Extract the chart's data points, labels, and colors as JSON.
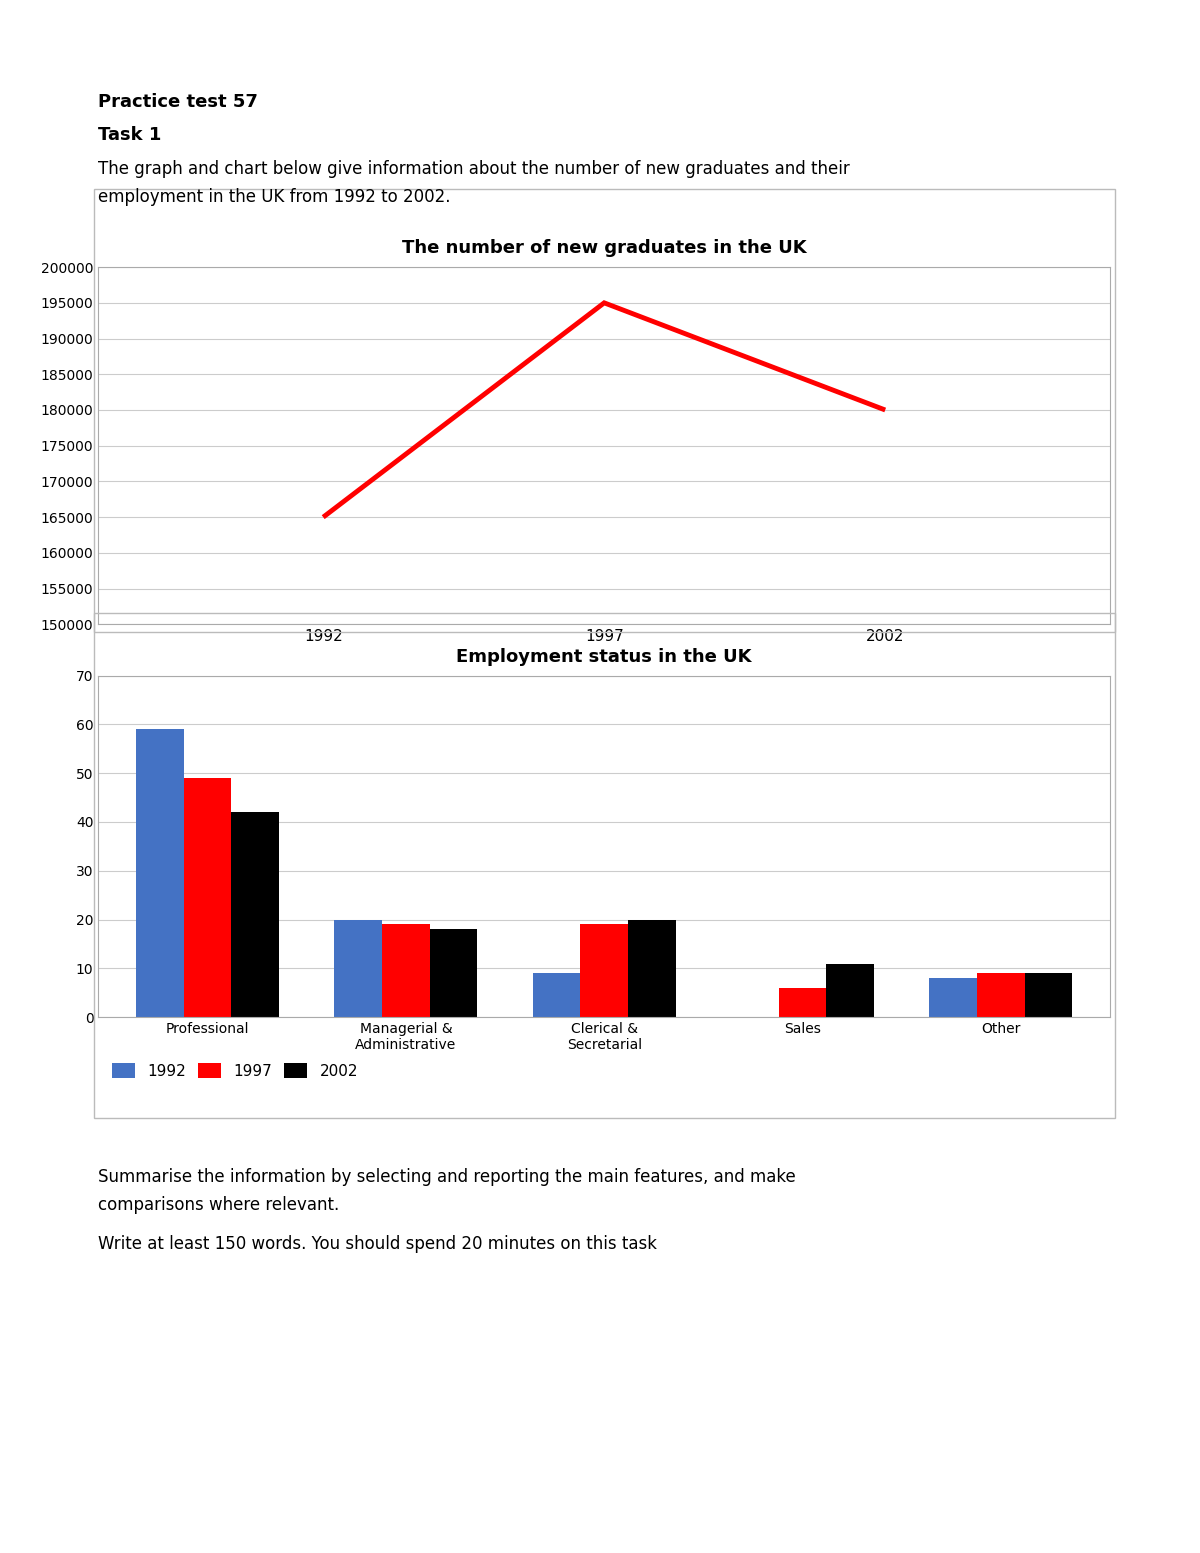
{
  "line_title": "The number of new graduates in the UK",
  "line_years": [
    1992,
    1997,
    2002
  ],
  "line_values": [
    165000,
    195000,
    180000
  ],
  "line_color": "#ff0000",
  "line_ylim": [
    150000,
    200000
  ],
  "line_yticks": [
    150000,
    155000,
    160000,
    165000,
    170000,
    175000,
    180000,
    185000,
    190000,
    195000,
    200000
  ],
  "line_xticks": [
    1992,
    1997,
    2002
  ],
  "bar_title": "Employment status in the UK",
  "bar_categories": [
    "Professional",
    "Managerial &\nAdministrative",
    "Clerical &\nSecretarial",
    "Sales",
    "Other"
  ],
  "bar_1992": [
    59,
    20,
    9,
    0,
    8
  ],
  "bar_1997": [
    49,
    19,
    19,
    6,
    9
  ],
  "bar_2002": [
    42,
    18,
    20,
    11,
    9
  ],
  "bar_colors": [
    "#4472c4",
    "#ff0000",
    "#000000"
  ],
  "bar_legend": [
    "1992",
    "1997",
    "2002"
  ],
  "bar_ylim": [
    0,
    70
  ],
  "bar_yticks": [
    0,
    10,
    20,
    30,
    40,
    50,
    60,
    70
  ],
  "header_title": "Practice test 57",
  "header_task": "Task 1",
  "header_desc": "The graph and chart below give information about the number of new graduates and their\nemployment in the UK from 1992 to 2002.",
  "footer_text1": "Summarise the information by selecting and reporting the main features, and make\ncomparisons where relevant.",
  "footer_text2": "Write at least 150 words. You should spend 20 minutes on this task",
  "bg_color": "#ffffff",
  "chart_bg": "#ffffff",
  "border_color": "#aaaaaa",
  "grid_color": "#cccccc",
  "text_color": "#000000"
}
